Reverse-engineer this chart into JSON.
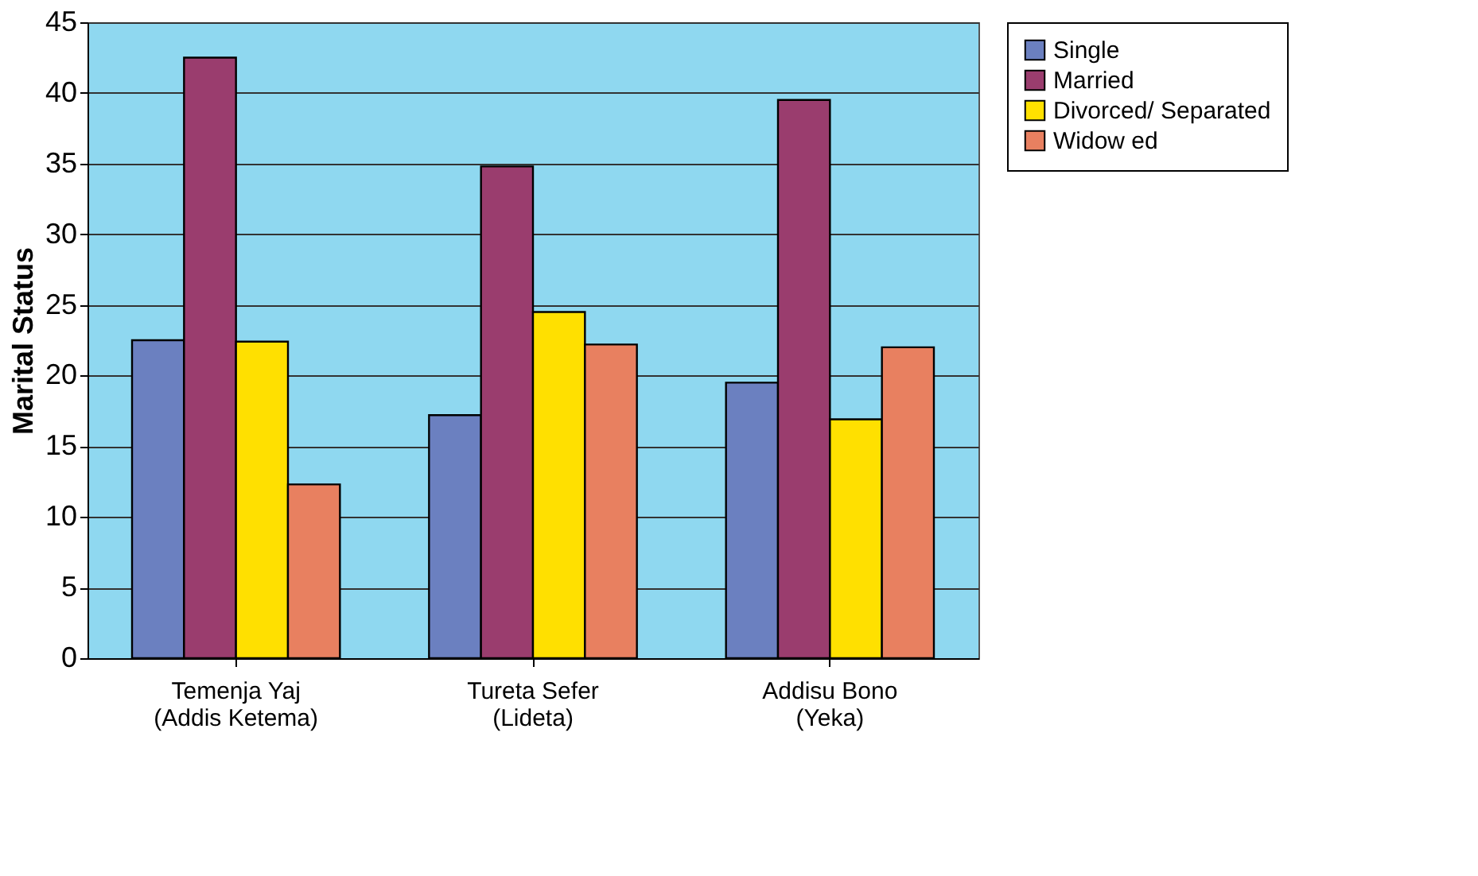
{
  "chart_data": {
    "type": "bar",
    "ylabel": "Marital Status",
    "categories": [
      "Temenja Yaj\n(Addis Ketema)",
      "Tureta Sefer\n(Lideta)",
      "Addisu Bono\n(Yeka)"
    ],
    "series": [
      {
        "name": "Single",
        "color": "#6b80c0",
        "values": [
          22.5,
          17.2,
          19.5
        ]
      },
      {
        "name": "Married",
        "color": "#9a3d6e",
        "values": [
          42.5,
          34.8,
          39.5
        ]
      },
      {
        "name": "Divorced/ Separated",
        "color": "#ffe000",
        "values": [
          22.4,
          24.5,
          16.9
        ]
      },
      {
        "name": "Widow ed",
        "color": "#e88060",
        "values": [
          12.3,
          22.2,
          22.0
        ]
      }
    ],
    "ylim": [
      0,
      45
    ],
    "yticks": [
      0,
      5,
      10,
      15,
      20,
      25,
      30,
      35,
      40,
      45
    ],
    "grid": "y",
    "legend": "right"
  }
}
